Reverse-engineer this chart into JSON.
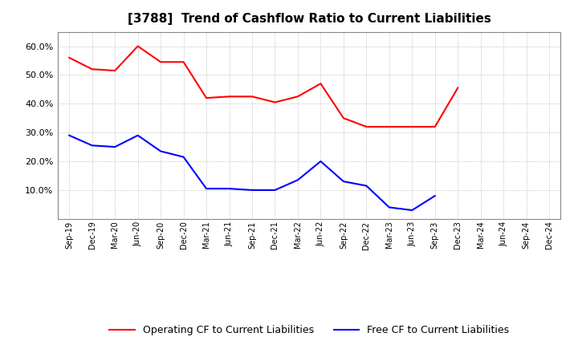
{
  "title": "[3788]  Trend of Cashflow Ratio to Current Liabilities",
  "x_labels": [
    "Sep-19",
    "Dec-19",
    "Mar-20",
    "Jun-20",
    "Sep-20",
    "Dec-20",
    "Mar-21",
    "Jun-21",
    "Sep-21",
    "Dec-21",
    "Mar-22",
    "Jun-22",
    "Sep-22",
    "Dec-22",
    "Mar-23",
    "Jun-23",
    "Sep-23",
    "Dec-23",
    "Mar-24",
    "Jun-24",
    "Sep-24",
    "Dec-24"
  ],
  "operating_cf": [
    0.56,
    0.52,
    0.515,
    0.6,
    0.545,
    0.545,
    0.42,
    0.425,
    0.425,
    0.405,
    0.425,
    0.47,
    0.35,
    0.32,
    0.32,
    0.32,
    0.32,
    0.455,
    null,
    null,
    null,
    null
  ],
  "free_cf": [
    0.29,
    0.255,
    0.25,
    0.29,
    0.235,
    0.215,
    0.105,
    0.105,
    0.1,
    0.1,
    0.135,
    0.2,
    0.13,
    0.115,
    0.04,
    0.03,
    0.08,
    null,
    null,
    null,
    null,
    null
  ],
  "operating_color": "#ff0000",
  "free_color": "#0000ff",
  "ylim": [
    0.0,
    0.65
  ],
  "yticks": [
    0.1,
    0.2,
    0.3,
    0.4,
    0.5,
    0.6
  ],
  "ytick_labels": [
    "10.0%",
    "20.0%",
    "30.0%",
    "40.0%",
    "50.0%",
    "60.0%"
  ],
  "legend_operating": "Operating CF to Current Liabilities",
  "legend_free": "Free CF to Current Liabilities",
  "bg_color": "#ffffff",
  "grid_color": "#b0b0b0"
}
